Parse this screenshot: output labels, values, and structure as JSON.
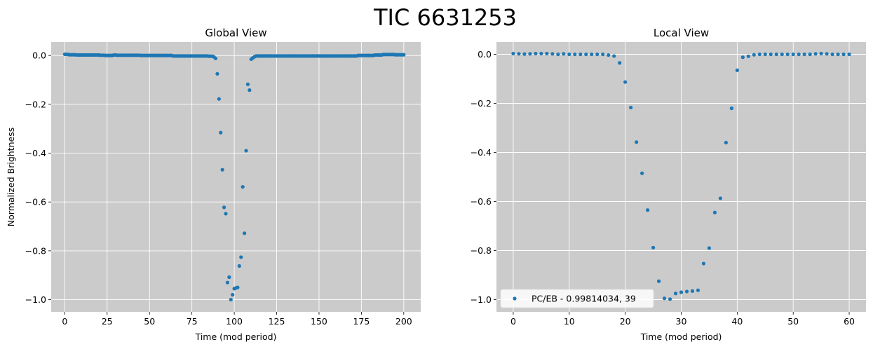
{
  "figure": {
    "title": "TIC 6631253"
  },
  "colors": {
    "axes_bg": "#cbcbcb",
    "grid": "#ffffff",
    "marker": "#1f77b4"
  },
  "chart_data": [
    {
      "type": "scatter",
      "title": "Global View",
      "xlabel": "Time (mod period)",
      "ylabel": "Normalized Brightness",
      "xlim": [
        -8,
        210
      ],
      "ylim": [
        -1.05,
        0.055
      ],
      "xticks": [
        0,
        25,
        50,
        75,
        100,
        125,
        150,
        175,
        200
      ],
      "xtick_labels": [
        "0",
        "25",
        "50",
        "75",
        "100",
        "125",
        "150",
        "175",
        "200"
      ],
      "yticks": [
        0.0,
        -0.2,
        -0.4,
        -0.6,
        -0.8,
        -1.0
      ],
      "ytick_labels": [
        "0.0",
        "−0.2",
        "−0.4",
        "−0.6",
        "−0.8",
        "−1.0"
      ],
      "grid": true,
      "series": [
        {
          "x": [
            0,
            1,
            2,
            3,
            4,
            5,
            6,
            7,
            8,
            9,
            10,
            11,
            12,
            13,
            14,
            15,
            16,
            17,
            18,
            19,
            20,
            21,
            22,
            23,
            24,
            25,
            26,
            27,
            28,
            29,
            30,
            31,
            32,
            33,
            34,
            35,
            36,
            37,
            38,
            39,
            40,
            41,
            42,
            43,
            44,
            45,
            46,
            47,
            48,
            49,
            50,
            51,
            52,
            53,
            54,
            55,
            56,
            57,
            58,
            59,
            60,
            61,
            62,
            63,
            64,
            65,
            66,
            67,
            68,
            69,
            70,
            71,
            72,
            73,
            74,
            75,
            76,
            77,
            78,
            79,
            80,
            81,
            82,
            83,
            84,
            85,
            86,
            87,
            88,
            89,
            90,
            91,
            92,
            93,
            94,
            95,
            96,
            97,
            98,
            99,
            100,
            101,
            102,
            103,
            104,
            105,
            106,
            107,
            108,
            109,
            110,
            111,
            112,
            113,
            114,
            115,
            116,
            117,
            118,
            119,
            120,
            121,
            122,
            123,
            124,
            125,
            126,
            127,
            128,
            129,
            130,
            131,
            132,
            133,
            134,
            135,
            136,
            137,
            138,
            139,
            140,
            141,
            142,
            143,
            144,
            145,
            146,
            147,
            148,
            149,
            150,
            151,
            152,
            153,
            154,
            155,
            156,
            157,
            158,
            159,
            160,
            161,
            162,
            163,
            164,
            165,
            166,
            167,
            168,
            169,
            170,
            171,
            172,
            173,
            174,
            175,
            176,
            177,
            178,
            179,
            180,
            181,
            182,
            183,
            184,
            185,
            186,
            187,
            188,
            189,
            190,
            191,
            192,
            193,
            194,
            195,
            196,
            197,
            198,
            199,
            200
          ],
          "y": [
            0.005,
            0.005,
            0.004,
            0.003,
            0.003,
            0.003,
            0.003,
            0.002,
            0.002,
            0.002,
            0.002,
            0.002,
            0.002,
            0.002,
            0.002,
            0.002,
            0.002,
            0.002,
            0.002,
            0.002,
            0.002,
            0.001,
            0.001,
            0.001,
            0.0,
            0.0,
            0.0,
            0.0,
            0.0,
            0.002,
            0.002,
            0.001,
            0.001,
            0.001,
            0.001,
            0.001,
            0.001,
            0.001,
            0.001,
            0.001,
            0.001,
            0.001,
            0.001,
            0.001,
            0.001,
            0.0,
            0.0,
            0.0,
            0.0,
            0.0,
            0.0,
            0.0,
            0.0,
            0.0,
            0.0,
            0.0,
            0.0,
            0.0,
            0.0,
            0.0,
            0.0,
            0.0,
            0.0,
            0.0,
            -0.002,
            -0.002,
            -0.002,
            -0.002,
            -0.002,
            -0.002,
            -0.002,
            -0.002,
            -0.002,
            -0.002,
            -0.002,
            -0.002,
            -0.002,
            -0.002,
            -0.002,
            -0.002,
            -0.002,
            -0.002,
            -0.002,
            -0.002,
            -0.002,
            -0.003,
            -0.003,
            -0.003,
            -0.006,
            -0.012,
            -0.075,
            -0.178,
            -0.316,
            -0.468,
            -0.622,
            -0.648,
            -0.93,
            -0.908,
            -1.0,
            -0.98,
            -0.955,
            -0.952,
            -0.95,
            -0.862,
            -0.826,
            -0.538,
            -0.728,
            -0.39,
            -0.118,
            -0.142,
            -0.015,
            -0.01,
            -0.005,
            -0.002,
            -0.002,
            -0.002,
            -0.002,
            -0.002,
            -0.002,
            -0.002,
            -0.002,
            -0.002,
            -0.002,
            -0.002,
            -0.002,
            -0.002,
            -0.002,
            -0.002,
            -0.002,
            -0.002,
            -0.002,
            -0.002,
            -0.002,
            -0.002,
            -0.002,
            -0.002,
            -0.002,
            -0.002,
            -0.002,
            -0.002,
            -0.002,
            -0.002,
            -0.002,
            -0.002,
            -0.002,
            -0.002,
            -0.002,
            -0.002,
            -0.002,
            -0.002,
            -0.002,
            -0.002,
            -0.002,
            -0.002,
            -0.002,
            -0.002,
            -0.002,
            -0.002,
            -0.002,
            -0.002,
            -0.002,
            -0.002,
            -0.002,
            -0.002,
            -0.002,
            -0.002,
            -0.002,
            -0.002,
            -0.002,
            -0.002,
            -0.002,
            -0.002,
            -0.002,
            0.0,
            0.0,
            0.0,
            0.0,
            0.0,
            0.0,
            0.0,
            0.0,
            0.0,
            0.0,
            0.002,
            0.002,
            0.002,
            0.002,
            0.002,
            0.004,
            0.004,
            0.004,
            0.004,
            0.004,
            0.004,
            0.004,
            0.003,
            0.003,
            0.003,
            0.003,
            0.003,
            0.003
          ]
        }
      ]
    },
    {
      "type": "scatter",
      "title": "Local View",
      "xlabel": "Time (mod period)",
      "ylabel": "",
      "xlim": [
        -3,
        63
      ],
      "ylim": [
        -1.05,
        0.05
      ],
      "xticks": [
        0,
        10,
        20,
        30,
        40,
        50,
        60
      ],
      "xtick_labels": [
        "0",
        "10",
        "20",
        "30",
        "40",
        "50",
        "60"
      ],
      "yticks": [
        0.0,
        -0.2,
        -0.4,
        -0.6,
        -0.8,
        -1.0
      ],
      "ytick_labels": [
        "0.0",
        "−0.2",
        "−0.4",
        "−0.6",
        "−0.8",
        "−1.0"
      ],
      "grid": true,
      "legend": {
        "placement": "lower-left"
      },
      "series": [
        {
          "name": "PC/EB - 0.99814034, 39",
          "x": [
            0,
            1,
            2,
            3,
            4,
            5,
            6,
            7,
            8,
            9,
            10,
            11,
            12,
            13,
            14,
            15,
            16,
            17,
            18,
            19,
            20,
            21,
            22,
            23,
            24,
            25,
            26,
            27,
            28,
            29,
            30,
            31,
            32,
            33,
            34,
            35,
            36,
            37,
            38,
            39,
            40,
            41,
            42,
            43,
            44,
            45,
            46,
            47,
            48,
            49,
            50,
            51,
            52,
            53,
            54,
            55,
            56,
            57,
            58,
            59,
            60
          ],
          "y": [
            0.003,
            0.002,
            0.001,
            0.002,
            0.003,
            0.003,
            0.003,
            0.002,
            0.0,
            0.002,
            0.0,
            0.0,
            0.0,
            0.0,
            0.0,
            0.0,
            0.0,
            -0.003,
            -0.007,
            -0.035,
            -0.113,
            -0.217,
            -0.358,
            -0.485,
            -0.635,
            -0.788,
            -0.925,
            -0.995,
            -0.998,
            -0.975,
            -0.97,
            -0.967,
            -0.965,
            -0.962,
            -0.853,
            -0.79,
            -0.645,
            -0.587,
            -0.36,
            -0.22,
            -0.065,
            -0.012,
            -0.008,
            -0.002,
            0.0,
            0.0,
            0.0,
            0.0,
            0.0,
            0.0,
            0.0,
            0.0,
            0.0,
            0.0,
            0.002,
            0.003,
            0.002,
            0.0,
            0.0,
            0.0,
            0.0
          ]
        }
      ]
    }
  ]
}
